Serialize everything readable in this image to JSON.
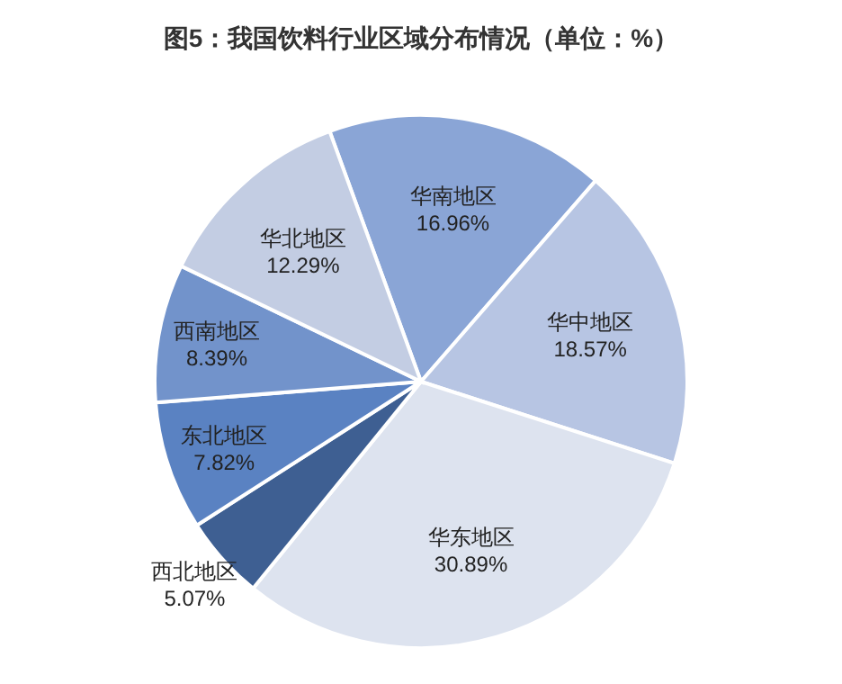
{
  "chart_data": {
    "type": "pie",
    "title": "图5：我国饮料行业区域分布情况（单位：%）",
    "categories": [
      "华南地区",
      "华中地区",
      "华东地区",
      "西北地区",
      "东北地区",
      "西南地区",
      "华北地区"
    ],
    "values": [
      16.96,
      18.57,
      30.89,
      5.07,
      7.82,
      8.39,
      12.29
    ],
    "colors": [
      "#8aa5d6",
      "#b7c5e3",
      "#dde3ef",
      "#3e5f92",
      "#5a82c2",
      "#7293cb",
      "#c3cde3"
    ],
    "value_labels": [
      "16.96%",
      "18.57%",
      "30.89%",
      "5.07%",
      "7.82%",
      "8.39%",
      "12.29%"
    ]
  }
}
